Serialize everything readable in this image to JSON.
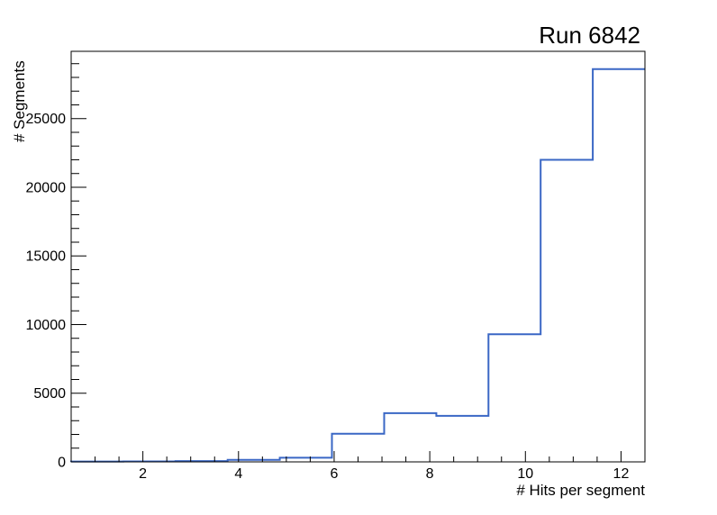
{
  "chart_data": {
    "type": "histogram-step",
    "title": "Run 6842",
    "xlabel": "# Hits per segment",
    "ylabel": "# Segments",
    "xlim": [
      0.5,
      12.5
    ],
    "ylim": [
      0,
      29900
    ],
    "bin_edges": [
      0.5,
      1.5909,
      2.6818,
      3.7727,
      4.8636,
      5.9545,
      7.0455,
      8.1364,
      9.2273,
      10.3182,
      11.4091,
      12.5
    ],
    "counts": [
      25,
      30,
      60,
      150,
      300,
      2050,
      3550,
      3350,
      9300,
      22000,
      28600
    ],
    "x_major_ticks": [
      2,
      4,
      6,
      8,
      10,
      12
    ],
    "x_major_tick_labels": [
      "2",
      "4",
      "6",
      "8",
      "10",
      "12"
    ],
    "x_minor_tick_step": 0.5,
    "y_major_ticks": [
      0,
      5000,
      10000,
      15000,
      20000,
      25000
    ],
    "y_major_tick_labels": [
      "0",
      "5000",
      "10000",
      "15000",
      "20000",
      "25000"
    ],
    "y_minor_tick_step": 1000,
    "grid": "off",
    "legend": "none",
    "line_color": "#3a67c5",
    "axis_color": "#000000",
    "background_color": "#ffffff"
  }
}
